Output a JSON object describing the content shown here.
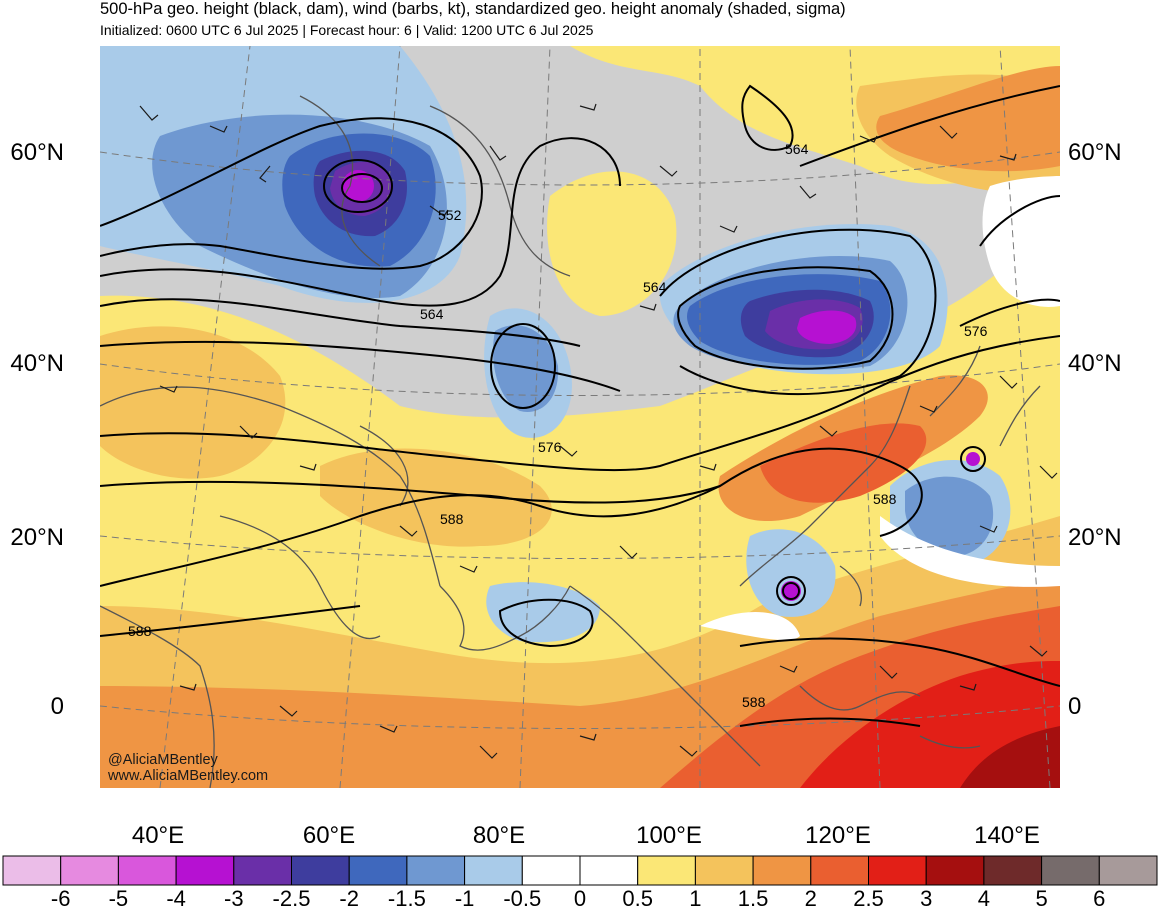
{
  "header": {
    "title": "500-hPa geo. height (black, dam), wind (barbs, kt), standardized geo. height anomaly (shaded, sigma)",
    "subtitle": "Initialized: 0600 UTC 6 Jul 2025 | Forecast hour: 6 | Valid: 1200 UTC 6 Jul 2025"
  },
  "credits": {
    "handle": "@AliciaMBentley",
    "website": "www.AliciaMBentley.com"
  },
  "axes": {
    "lat_labels": [
      "60°N",
      "40°N",
      "20°N",
      "0"
    ],
    "lon_labels": [
      "40°E",
      "60°E",
      "80°E",
      "100°E",
      "120°E",
      "140°E"
    ]
  },
  "contour_labels": [
    "552",
    "564",
    "564",
    "564",
    "576",
    "576",
    "588",
    "588",
    "588",
    "588"
  ],
  "colorbar": {
    "labels": [
      "-6",
      "-5",
      "-4",
      "-3",
      "-2.5",
      "-2",
      "-1.5",
      "-1",
      "-0.5",
      "0",
      "0.5",
      "1",
      "1.5",
      "2",
      "2.5",
      "3",
      "4",
      "5",
      "6"
    ],
    "colors": [
      "#ebbde8",
      "#e68ae0",
      "#d957dc",
      "#b611d2",
      "#6a2fa8",
      "#3e3d9e",
      "#3f68bd",
      "#6f98d1",
      "#a9cbe9",
      "#ffffff",
      "#ffffff",
      "#fbe776",
      "#f4c35c",
      "#ef9544",
      "#ea5f30",
      "#e21f17",
      "#a50f0f",
      "#6e2a2a",
      "#766b6b",
      "#a79a9a"
    ]
  },
  "colors": {
    "neutral_gray": "#cfcfcf",
    "contour": "#000000",
    "coast": "#555555"
  }
}
